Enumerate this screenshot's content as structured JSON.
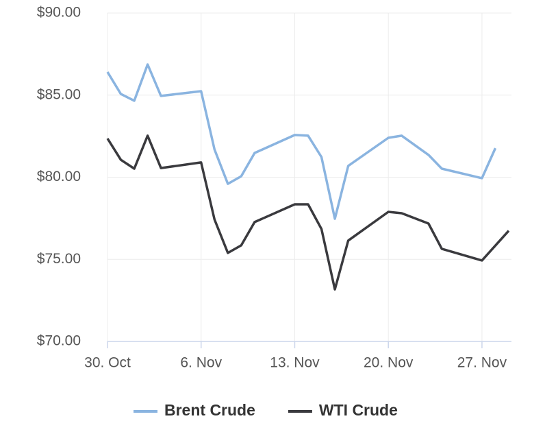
{
  "chart_data": {
    "type": "line",
    "xlim": [
      "30. Oct",
      "29. Nov"
    ],
    "xticks": [
      "30. Oct",
      "6. Nov",
      "13. Nov",
      "20. Nov",
      "27. Nov"
    ],
    "ylim": [
      70,
      90
    ],
    "yticks": [
      {
        "value": 70,
        "label": "$70.00"
      },
      {
        "value": 75,
        "label": "$75.00"
      },
      {
        "value": 80,
        "label": "$80.00"
      },
      {
        "value": 85,
        "label": "$85.00"
      },
      {
        "value": 90,
        "label": "$90.00"
      }
    ],
    "grid": true,
    "legend": "bottom",
    "series": [
      {
        "name": "Brent Crude",
        "color": "#8ab4e0",
        "x": [
          "30. Oct",
          "31. Oct",
          "1. Nov",
          "2. Nov",
          "3. Nov",
          "6. Nov",
          "7. Nov",
          "8. Nov",
          "9. Nov",
          "10. Nov",
          "13. Nov",
          "14. Nov",
          "15. Nov",
          "16. Nov",
          "17. Nov",
          "20. Nov",
          "21. Nov",
          "23. Nov",
          "24. Nov",
          "27. Nov",
          "28. Nov"
        ],
        "values": [
          86.41,
          85.07,
          84.66,
          86.87,
          84.95,
          85.24,
          81.69,
          79.6,
          80.06,
          81.48,
          82.57,
          82.53,
          81.23,
          77.47,
          80.69,
          82.4,
          82.53,
          81.36,
          80.52,
          79.94,
          81.77
        ]
      },
      {
        "name": "WTI Crude",
        "color": "#3a3a3e",
        "x": [
          "30. Oct",
          "31. Oct",
          "1. Nov",
          "2. Nov",
          "3. Nov",
          "6. Nov",
          "7. Nov",
          "8. Nov",
          "9. Nov",
          "10. Nov",
          "13. Nov",
          "14. Nov",
          "15. Nov",
          "16. Nov",
          "17. Nov",
          "20. Nov",
          "21. Nov",
          "23. Nov",
          "24. Nov",
          "27. Nov",
          "29. Nov"
        ],
        "values": [
          82.36,
          81.06,
          80.52,
          82.53,
          80.56,
          80.9,
          77.43,
          75.39,
          75.85,
          77.27,
          78.35,
          78.35,
          76.85,
          73.17,
          76.14,
          77.89,
          77.81,
          77.18,
          75.64,
          74.93,
          76.74
        ]
      }
    ]
  }
}
